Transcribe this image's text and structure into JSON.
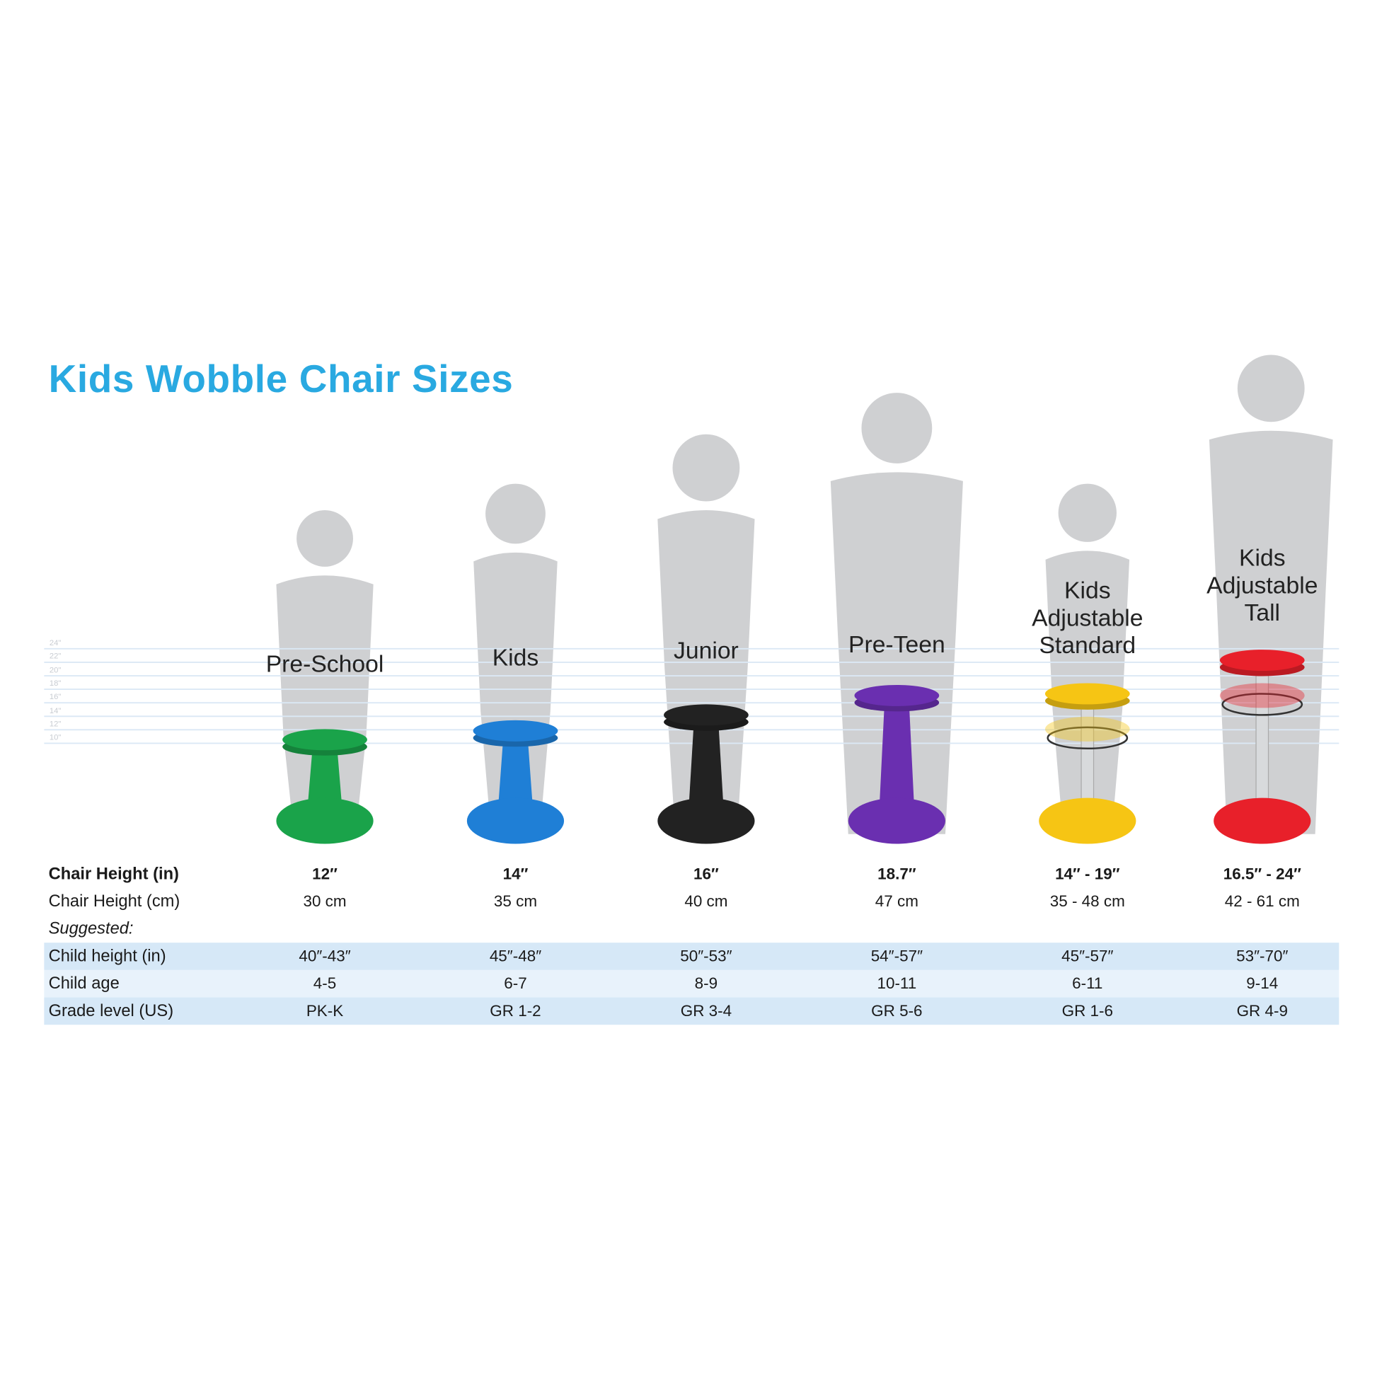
{
  "title": "Kids Wobble Chair Sizes",
  "ruler_ticks": [
    "24\"",
    "22\"",
    "20\"",
    "18\"",
    "16\"",
    "14\"",
    "12\"",
    "10\""
  ],
  "products": [
    {
      "name_lines": [
        "Pre-School"
      ],
      "color": "#1aa34a",
      "chair_height_in": 12
    },
    {
      "name_lines": [
        "Kids"
      ],
      "color": "#1f7fd6",
      "chair_height_in": 14
    },
    {
      "name_lines": [
        "Junior"
      ],
      "color": "#222222",
      "chair_height_in": 16
    },
    {
      "name_lines": [
        "Pre-Teen"
      ],
      "color": "#6a2fb0",
      "chair_height_in": 18.7
    },
    {
      "name_lines": [
        "Kids",
        "Adjustable",
        "Standard"
      ],
      "color": "#f6c514",
      "chair_height_in": 19
    },
    {
      "name_lines": [
        "Kids",
        "Adjustable",
        "Tall"
      ],
      "color": "#e8202a",
      "chair_height_in": 24
    }
  ],
  "table": {
    "rows": [
      {
        "label": "Chair Height (in)",
        "style": "bold",
        "values": [
          "12″",
          "14″",
          "16″",
          "18.7″",
          "14″ - 19″",
          "16.5″ - 24″"
        ]
      },
      {
        "label": "Chair Height (cm)",
        "style": "normal",
        "values": [
          "30 cm",
          "35 cm",
          "40 cm",
          "47 cm",
          "35 - 48 cm",
          "42 - 61 cm"
        ]
      },
      {
        "label": "Suggested:",
        "style": "italic",
        "values": []
      },
      {
        "label": "Child height (in)",
        "style": "shaded-dark",
        "values": [
          "40″-43″",
          "45″-48″",
          "50″-53″",
          "54″-57″",
          "45″-57″",
          "53″-70″"
        ]
      },
      {
        "label": "Child age",
        "style": "shaded-light",
        "values": [
          "4-5",
          "6-7",
          "8-9",
          "10-11",
          "6-11",
          "9-14"
        ]
      },
      {
        "label": "Grade level (US)",
        "style": "shaded-dark",
        "values": [
          "PK-K",
          "GR 1-2",
          "GR 3-4",
          "GR 5-6",
          "GR 1-6",
          "GR 4-9"
        ]
      }
    ]
  },
  "colors": {
    "title": "#29a9e1",
    "silhouette": "#cfd0d2",
    "row_dark": "#d6e8f7",
    "row_light": "#e8f2fb",
    "ruler": "#dbe8f5"
  }
}
